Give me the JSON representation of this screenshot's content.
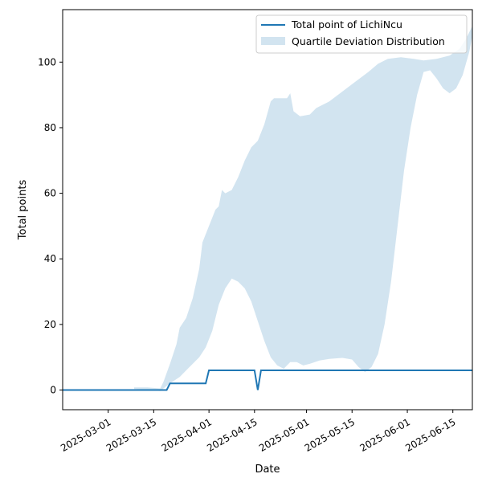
{
  "chart_data": {
    "type": "line",
    "xlabel": "Date",
    "ylabel": "Total points",
    "xlim": [
      "2025-02-15",
      "2025-06-21"
    ],
    "ylim": [
      -6,
      116
    ],
    "x_ticks": [
      "2025-03-01",
      "2025-03-15",
      "2025-04-01",
      "2025-04-15",
      "2025-05-01",
      "2025-05-15",
      "2025-06-01",
      "2025-06-15"
    ],
    "y_ticks": [
      0,
      20,
      40,
      60,
      80,
      100
    ],
    "legend_position": "upper right",
    "grid": false,
    "colors": {
      "line": "#1f77b4",
      "band": "#1f77b4",
      "band_opacity": 0.2
    },
    "series": [
      {
        "name": "Total point of LichiNcu",
        "kind": "line",
        "points": [
          [
            "2025-02-15",
            0
          ],
          [
            "2025-03-19",
            0
          ],
          [
            "2025-03-20",
            2
          ],
          [
            "2025-03-31",
            2
          ],
          [
            "2025-04-01",
            6
          ],
          [
            "2025-04-15",
            6
          ],
          [
            "2025-04-16",
            0
          ],
          [
            "2025-04-17",
            6
          ],
          [
            "2025-06-21",
            6
          ]
        ]
      },
      {
        "name": "Quartile Deviation Distribution",
        "kind": "band",
        "upper": [
          [
            "2025-03-09",
            0.8
          ],
          [
            "2025-03-13",
            0.8
          ],
          [
            "2025-03-17",
            0.5
          ],
          [
            "2025-03-18",
            2.5
          ],
          [
            "2025-03-20",
            8
          ],
          [
            "2025-03-22",
            14
          ],
          [
            "2025-03-23",
            19
          ],
          [
            "2025-03-25",
            22
          ],
          [
            "2025-03-27",
            28
          ],
          [
            "2025-03-29",
            37
          ],
          [
            "2025-03-30",
            45
          ],
          [
            "2025-04-01",
            50
          ],
          [
            "2025-04_03",
            55
          ],
          [
            "2025-04-04",
            56
          ],
          [
            "2025-04-05",
            61
          ],
          [
            "2025-04-06",
            60
          ],
          [
            "2025-04-08",
            61
          ],
          [
            "2025-04-10",
            65
          ],
          [
            "2025-04-12",
            70
          ],
          [
            "2025-04-14",
            74
          ],
          [
            "2025-04-16",
            76
          ],
          [
            "2025-04-18",
            81
          ],
          [
            "2025-04-20",
            88
          ],
          [
            "2025-04-21",
            89
          ],
          [
            "2025-04-22",
            89
          ],
          [
            "2025-04-25",
            89
          ],
          [
            "2025-04-26",
            90.5
          ],
          [
            "2025-04-27",
            85
          ],
          [
            "2025-04-29",
            83.5
          ],
          [
            "2025-05-02",
            84
          ],
          [
            "2025-05-04",
            86
          ],
          [
            "2025-05-08",
            88
          ],
          [
            "2025-05-12",
            91
          ],
          [
            "2025-05-16",
            94
          ],
          [
            "2025-05-20",
            97
          ],
          [
            "2025-05-23",
            99.5
          ],
          [
            "2025-05-26",
            101
          ],
          [
            "2025-05-30",
            101.5
          ],
          [
            "2025-06-03",
            101
          ],
          [
            "2025-06-06",
            100.5
          ],
          [
            "2025-06-10",
            101
          ],
          [
            "2025-06-14",
            102
          ],
          [
            "2025-06-17",
            104
          ],
          [
            "2025-06-19",
            107
          ],
          [
            "2025-06-21",
            111
          ]
        ],
        "lower": [
          [
            "2025-03-09",
            0.3
          ],
          [
            "2025-03-13",
            0.2
          ],
          [
            "2025-03-17",
            -0.3
          ],
          [
            "2025-03-18",
            0.5
          ],
          [
            "2025-03-20",
            2
          ],
          [
            "2025-03-23",
            4
          ],
          [
            "2025-03-25",
            6
          ],
          [
            "2025-03-27",
            8
          ],
          [
            "2025-03-29",
            10
          ],
          [
            "2025-03-31",
            13
          ],
          [
            "2025-04-02",
            18
          ],
          [
            "2025-04-04",
            26
          ],
          [
            "2025-04-06",
            31
          ],
          [
            "2025-04-08",
            34
          ],
          [
            "2025-04-10",
            33
          ],
          [
            "2025-04-12",
            31
          ],
          [
            "2025-04-14",
            27
          ],
          [
            "2025-04-16",
            21
          ],
          [
            "2025-04-18",
            15
          ],
          [
            "2025-04-20",
            10
          ],
          [
            "2025-04-22",
            7.5
          ],
          [
            "2025-04-24",
            6.5
          ],
          [
            "2025-04-26",
            8.5
          ],
          [
            "2025-04-28",
            8.5
          ],
          [
            "2025-04-30",
            7.5
          ],
          [
            "2025-05-02",
            8
          ],
          [
            "2025-05-05",
            9
          ],
          [
            "2025-05-08",
            9.5
          ],
          [
            "2025-05-12",
            9.8
          ],
          [
            "2025-05-15",
            9.3
          ],
          [
            "2025-05-17",
            7
          ],
          [
            "2025-05-19",
            5.5
          ],
          [
            "2025-05-21",
            7
          ],
          [
            "2025-05-23",
            11
          ],
          [
            "2025-05-25",
            20
          ],
          [
            "2025-05-27",
            33
          ],
          [
            "2025-05-29",
            50
          ],
          [
            "2025-05-31",
            67
          ],
          [
            "2025-06-02",
            80
          ],
          [
            "2025-06-04",
            90
          ],
          [
            "2025-06-06",
            97
          ],
          [
            "2025-06-08",
            97.5
          ],
          [
            "2025-06-10",
            95
          ],
          [
            "2025-06-12",
            92
          ],
          [
            "2025-06-14",
            90.5
          ],
          [
            "2025-06-16",
            92
          ],
          [
            "2025-06-18",
            96
          ],
          [
            "2025-06-20",
            103
          ],
          [
            "2025-06-21",
            108
          ]
        ]
      }
    ]
  }
}
